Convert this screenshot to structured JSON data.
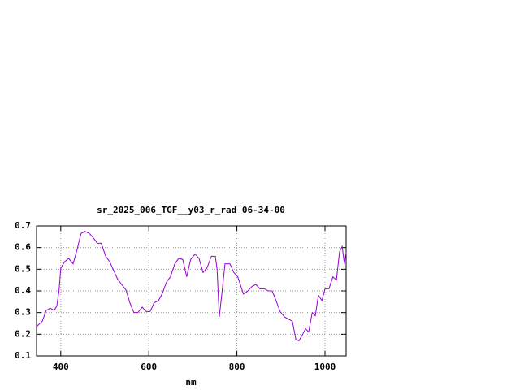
{
  "chart_data": {
    "type": "line",
    "title": "sr_2025_006_TGF__y03_r_rad 06-34-00",
    "xlabel": "nm",
    "xlim": [
      345,
      1048
    ],
    "ylim": [
      0.1,
      0.7
    ],
    "xticks": [
      400,
      600,
      800,
      1000
    ],
    "yticks": [
      0.1,
      0.2,
      0.3,
      0.4,
      0.5,
      0.6,
      0.7
    ],
    "grid": true,
    "series": [
      {
        "color": "#9400d3",
        "x": [
          345,
          358,
          367,
          376,
          385,
          391,
          396,
          400,
          409,
          418,
          428,
          437,
          446,
          455,
          465,
          474,
          483,
          492,
          502,
          511,
          520,
          529,
          538,
          548,
          557,
          566,
          575,
          585,
          594,
          603,
          612,
          622,
          631,
          640,
          649,
          659,
          668,
          677,
          686,
          695,
          705,
          714,
          723,
          732,
          742,
          751,
          755,
          760,
          766,
          773,
          784,
          793,
          802,
          815,
          825,
          834,
          843,
          852,
          862,
          871,
          880,
          889,
          898,
          908,
          917,
          926,
          934,
          941,
          948,
          956,
          963,
          971,
          978,
          985,
          993,
          1000,
          1009,
          1018,
          1026,
          1033,
          1039,
          1044,
          1048
        ],
        "values": [
          0.235,
          0.26,
          0.31,
          0.32,
          0.31,
          0.33,
          0.4,
          0.505,
          0.535,
          0.55,
          0.525,
          0.59,
          0.665,
          0.675,
          0.665,
          0.645,
          0.62,
          0.62,
          0.56,
          0.535,
          0.495,
          0.455,
          0.43,
          0.405,
          0.345,
          0.3,
          0.3,
          0.325,
          0.305,
          0.305,
          0.345,
          0.355,
          0.39,
          0.44,
          0.465,
          0.525,
          0.55,
          0.545,
          0.465,
          0.545,
          0.57,
          0.55,
          0.485,
          0.505,
          0.56,
          0.56,
          0.5,
          0.28,
          0.39,
          0.525,
          0.525,
          0.485,
          0.465,
          0.385,
          0.4,
          0.42,
          0.43,
          0.41,
          0.41,
          0.4,
          0.4,
          0.355,
          0.305,
          0.28,
          0.27,
          0.26,
          0.175,
          0.17,
          0.195,
          0.225,
          0.21,
          0.3,
          0.285,
          0.38,
          0.355,
          0.41,
          0.41,
          0.465,
          0.45,
          0.58,
          0.605,
          0.525,
          0.58
        ]
      }
    ]
  }
}
